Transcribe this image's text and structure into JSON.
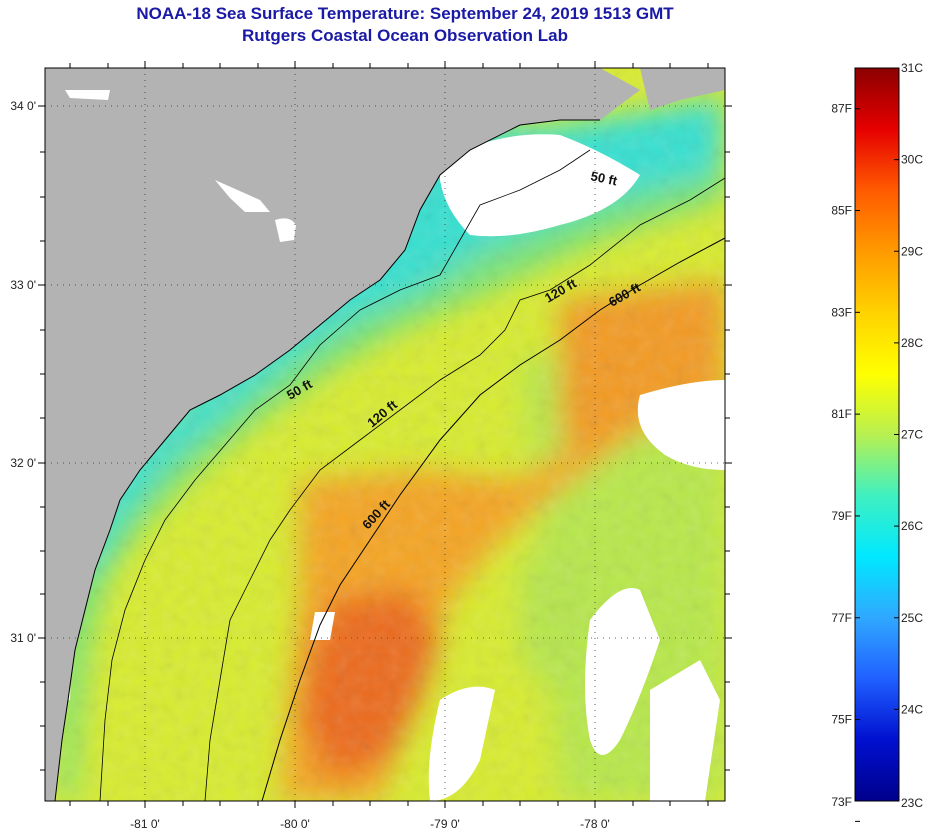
{
  "header": {
    "title": "NOAA-18 Sea Surface Temperature:  September 24, 2019 1513 GMT",
    "subtitle": "Rutgers Coastal Ocean Observation Lab"
  },
  "map": {
    "lat_ticks": [
      "34 0'",
      "33 0'",
      "32 0'",
      "31 0'"
    ],
    "lon_ticks": [
      "-81 0'",
      "-80 0'",
      "-79 0'",
      "-78 0'"
    ],
    "contours": [
      {
        "label": "50 ft"
      },
      {
        "label": "50 ft"
      },
      {
        "label": "120 ft"
      },
      {
        "label": "120 ft"
      },
      {
        "label": "600 ft"
      },
      {
        "label": "600 ft"
      }
    ],
    "colors": {
      "land": "#b3b3b3",
      "cloud": "#ffffff",
      "cool_water": "#2fe0d0",
      "mid_water": "#a8e84a",
      "warm_water": "#f5e21a",
      "hot_water": "#f08a20",
      "hottest": "#e8581a"
    }
  },
  "colorbar": {
    "fahrenheit": [
      "87F",
      "85F",
      "83F",
      "81F",
      "79F",
      "77F",
      "75F",
      "73F"
    ],
    "celsius": [
      "31C",
      "30C",
      "29C",
      "28C",
      "27C",
      "26C",
      "25C",
      "24C",
      "23C"
    ],
    "gradient": [
      "#8b0000",
      "#e60000",
      "#ff5a00",
      "#ff9a00",
      "#ffd200",
      "#ffff00",
      "#b8f050",
      "#3ff0c0",
      "#00e8ff",
      "#30a8ff",
      "#2060ff",
      "#0010d0",
      "#00008b"
    ]
  }
}
